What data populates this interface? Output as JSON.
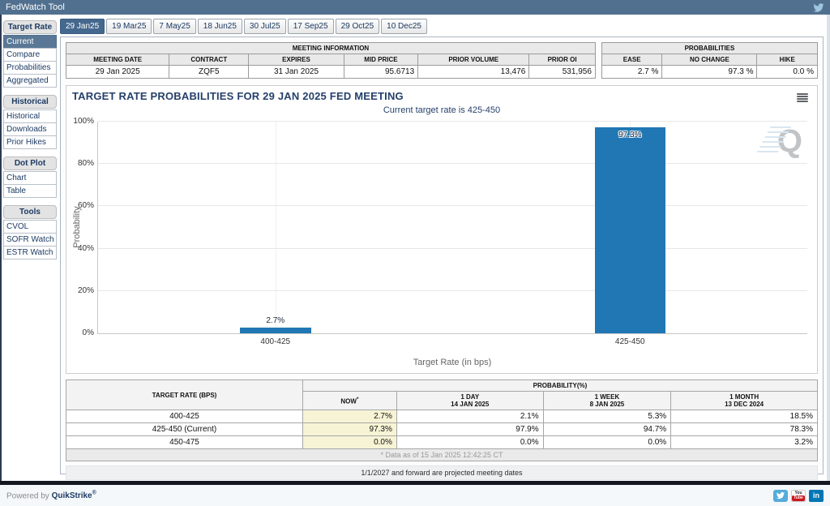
{
  "header": {
    "title": "FedWatch Tool"
  },
  "icons": [
    "twitter-icon",
    "hamburger-chart-menu-icon",
    "quikstrike-q-watermark-icon",
    "youtube-icon",
    "linkedin-icon"
  ],
  "tabs": [
    "29 Jan25",
    "19 Mar25",
    "7 May25",
    "18 Jun25",
    "30 Jul25",
    "17 Sep25",
    "29 Oct25",
    "10 Dec25"
  ],
  "sidebar": {
    "sections": [
      {
        "title": "Target Rate",
        "items": [
          "Current",
          "Compare",
          "Probabilities",
          "Aggregated"
        ]
      },
      {
        "title": "Historical",
        "items": [
          "Historical",
          "Downloads",
          "Prior Hikes"
        ]
      },
      {
        "title": "Dot Plot",
        "items": [
          "Chart",
          "Table"
        ]
      },
      {
        "title": "Tools",
        "items": [
          "CVOL",
          "SOFR Watch",
          "ESTR Watch"
        ]
      }
    ]
  },
  "meeting_info": {
    "title": "MEETING INFORMATION",
    "columns": [
      "MEETING DATE",
      "CONTRACT",
      "EXPIRES",
      "MID PRICE",
      "PRIOR VOLUME",
      "PRIOR OI"
    ],
    "values": [
      "29 Jan 2025",
      "ZQF5",
      "31 Jan 2025",
      "95.6713",
      "13,476",
      "531,956"
    ]
  },
  "probabilities_summary": {
    "title": "PROBABILITIES",
    "columns": [
      "EASE",
      "NO CHANGE",
      "HIKE"
    ],
    "values": [
      "2.7 %",
      "97.3 %",
      "0.0 %"
    ]
  },
  "chart_data": {
    "type": "bar",
    "title": "TARGET RATE PROBABILITIES FOR 29 JAN 2025 FED MEETING",
    "subtitle": "Current target rate is 425-450",
    "categories": [
      "400-425",
      "425-450"
    ],
    "values": [
      2.7,
      97.3
    ],
    "value_labels": [
      "2.7%",
      "97.3%"
    ],
    "xlabel": "Target Rate (in bps)",
    "ylabel": "Probability",
    "ylim": [
      0,
      100
    ],
    "yticks": [
      "0%",
      "20%",
      "40%",
      "60%",
      "80%",
      "100%"
    ],
    "grid": true,
    "legend": "none",
    "bar_color": "#2077b4"
  },
  "probability_table": {
    "col1_header": "TARGET RATE (BPS)",
    "group_header": "PROBABILITY(%)",
    "columns": [
      {
        "line1": "NOW",
        "sup": "*",
        "line2": ""
      },
      {
        "line1": "1 DAY",
        "line2": "14 JAN 2025"
      },
      {
        "line1": "1 WEEK",
        "line2": "8 JAN 2025"
      },
      {
        "line1": "1 MONTH",
        "line2": "13 DEC 2024"
      }
    ],
    "rows": [
      {
        "rate": "400-425",
        "now": "2.7%",
        "day": "2.1%",
        "week": "5.3%",
        "month": "18.5%"
      },
      {
        "rate": "425-450 (Current)",
        "now": "97.3%",
        "day": "97.9%",
        "week": "94.7%",
        "month": "78.3%"
      },
      {
        "rate": "450-475",
        "now": "0.0%",
        "day": "0.0%",
        "week": "0.0%",
        "month": "3.2%"
      }
    ],
    "footnote": "* Data as of 15 Jan 2025 12:42:25 CT"
  },
  "notes": {
    "projected": "1/1/2027 and forward are projected meeting dates"
  },
  "footer": {
    "powered_by": "Powered by",
    "brand": "QuikStrike",
    "reg": "®",
    "youtube_top": "You",
    "youtube_bottom": "Tube",
    "linkedin": "in"
  }
}
